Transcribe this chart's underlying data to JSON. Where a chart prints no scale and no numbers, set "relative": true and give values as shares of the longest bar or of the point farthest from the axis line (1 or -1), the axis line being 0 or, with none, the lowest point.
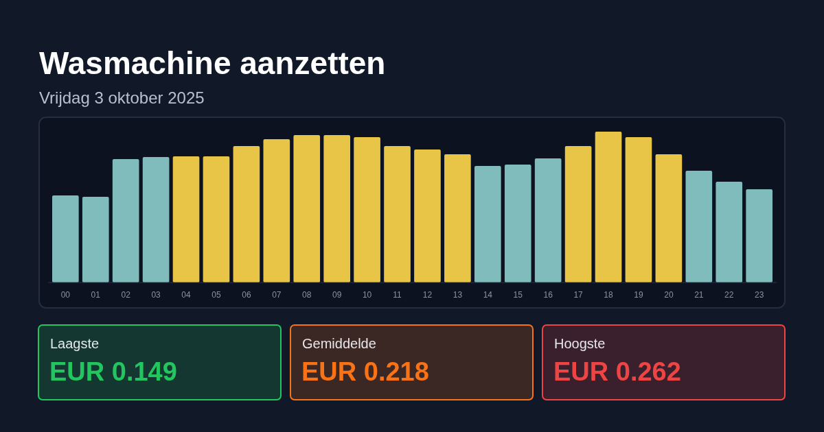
{
  "chart_data": [
    {
      "type": "bar",
      "title": "Wasmachine aanzetten",
      "subtitle": "Vrijdag 3 oktober 2025",
      "relative": true,
      "categories": [
        "00",
        "01",
        "02",
        "03",
        "04",
        "05",
        "06",
        "07",
        "08",
        "09",
        "10",
        "11",
        "12",
        "13",
        "14",
        "15",
        "16",
        "17",
        "18",
        "19",
        "20",
        "21",
        "22",
        "23"
      ],
      "values": [
        0.577,
        0.568,
        0.818,
        0.832,
        0.836,
        0.836,
        0.905,
        0.95,
        0.977,
        0.977,
        0.964,
        0.905,
        0.882,
        0.85,
        0.773,
        0.782,
        0.823,
        0.905,
        1,
        0.964,
        0.85,
        0.741,
        0.668,
        0.618
      ],
      "colors": [
        "#7fbcbb",
        "#7fbcbb",
        "#7fbcbb",
        "#7fbcbb",
        "#e8c547",
        "#e8c547",
        "#e8c547",
        "#e8c547",
        "#e8c547",
        "#e8c547",
        "#e8c547",
        "#e8c547",
        "#e8c547",
        "#e8c547",
        "#7fbcbb",
        "#7fbcbb",
        "#7fbcbb",
        "#e8c547",
        "#e8c547",
        "#e8c547",
        "#e8c547",
        "#7fbcbb",
        "#7fbcbb",
        "#7fbcbb"
      ]
    },
    {
      "type": "other",
      "annotations": [
        "Laagste",
        "EUR 0.149",
        "Gemiddelde",
        "EUR 0.218",
        "Hoogste",
        "EUR 0.262"
      ],
      "colors": [
        "#22c55e",
        "#f97316",
        "#ef4444"
      ]
    }
  ]
}
